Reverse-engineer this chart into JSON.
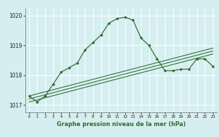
{
  "title": "Graphe pression niveau de la mer (hPa)",
  "background_color": "#d6eef0",
  "grid_color": "#ffffff",
  "line_color": "#2d6e2d",
  "x_values": [
    0,
    1,
    2,
    3,
    4,
    5,
    6,
    7,
    8,
    9,
    10,
    11,
    12,
    13,
    14,
    15,
    16,
    17,
    18,
    19,
    20,
    21,
    22,
    23
  ],
  "main_y": [
    1017.3,
    1017.1,
    1017.3,
    1017.7,
    1018.1,
    1018.25,
    1018.4,
    1018.85,
    1019.1,
    1019.35,
    1019.75,
    1019.9,
    1019.95,
    1019.85,
    1019.25,
    1019.0,
    1018.55,
    1018.15,
    1018.15,
    1018.2,
    1018.2,
    1018.55,
    1018.55,
    1018.3
  ],
  "reg_lines": [
    [
      1017.3,
      1017.37,
      1017.44,
      1017.51,
      1017.58,
      1017.65,
      1017.72,
      1017.79,
      1017.86,
      1017.93,
      1018.0,
      1018.07,
      1018.14,
      1018.21,
      1018.28,
      1018.35,
      1018.42,
      1018.49,
      1018.56,
      1018.63,
      1018.7,
      1018.77,
      1018.84,
      1018.91
    ],
    [
      1017.2,
      1017.27,
      1017.34,
      1017.41,
      1017.48,
      1017.55,
      1017.62,
      1017.69,
      1017.76,
      1017.83,
      1017.9,
      1017.97,
      1018.04,
      1018.11,
      1018.18,
      1018.25,
      1018.32,
      1018.39,
      1018.46,
      1018.53,
      1018.6,
      1018.67,
      1018.74,
      1018.81
    ],
    [
      1017.1,
      1017.17,
      1017.24,
      1017.31,
      1017.38,
      1017.45,
      1017.52,
      1017.59,
      1017.66,
      1017.73,
      1017.8,
      1017.87,
      1017.94,
      1018.01,
      1018.08,
      1018.15,
      1018.22,
      1018.29,
      1018.36,
      1018.43,
      1018.5,
      1018.57,
      1018.64,
      1018.71
    ]
  ],
  "ylim": [
    1016.75,
    1020.25
  ],
  "yticks": [
    1017,
    1018,
    1019,
    1020
  ],
  "xlim": [
    -0.5,
    23.5
  ],
  "figsize": [
    3.2,
    2.0
  ],
  "dpi": 100
}
